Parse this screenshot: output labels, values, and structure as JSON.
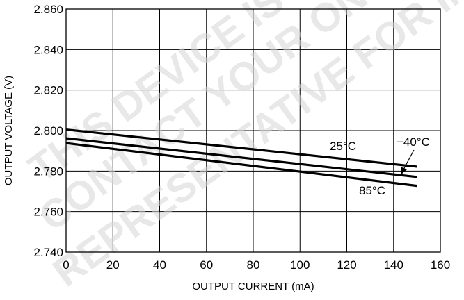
{
  "chart_data": {
    "type": "line",
    "xlabel": "OUTPUT CURRENT (mA)",
    "ylabel": "OUTPUT VOLTAGE (V)",
    "xlim": [
      0,
      160
    ],
    "ylim": [
      2.74,
      2.86
    ],
    "xticks": [
      "0",
      "20",
      "40",
      "60",
      "80",
      "100",
      "120",
      "140",
      "160"
    ],
    "yticks": [
      "2.740",
      "2.760",
      "2.780",
      "2.800",
      "2.820",
      "2.840",
      "2.860"
    ],
    "grid": true,
    "series": [
      {
        "name": "25°C",
        "x": [
          0,
          150
        ],
        "y": [
          2.8005,
          2.7822
        ]
      },
      {
        "name": "−40°C",
        "x": [
          0,
          150
        ],
        "y": [
          2.7962,
          2.7771
        ]
      },
      {
        "name": "85°C",
        "x": [
          0,
          150
        ],
        "y": [
          2.7938,
          2.7727
        ]
      }
    ],
    "annotations": [
      "25°C",
      "−40°C",
      "85°C"
    ]
  },
  "watermark": {
    "lines": [
      "THIS DEVICE IS OBSOLETE",
      "CONTACT YOUR ON SEMICONDUCTOR",
      "REPRESENTATIVE FOR INFORMATION"
    ]
  }
}
